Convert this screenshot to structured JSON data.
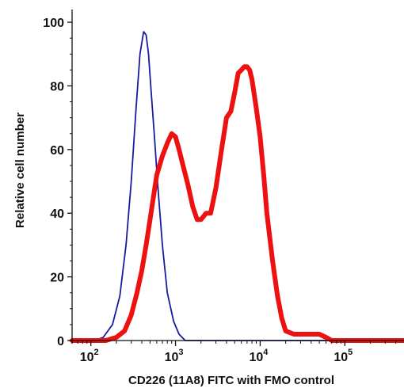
{
  "chart_data": {
    "type": "line",
    "title": "",
    "xlabel": "CD226 (11A8) FITC with FMO control",
    "ylabel": "Relative cell number",
    "xscale": "log",
    "xlim": [
      60,
      500000
    ],
    "ylim": [
      0,
      104
    ],
    "grid": false,
    "legend": "none",
    "y_ticks": [
      0,
      20,
      40,
      60,
      80,
      100
    ],
    "x_ticks": [
      {
        "value": 100,
        "base": "10",
        "exp": "2"
      },
      {
        "value": 1000,
        "base": "10",
        "exp": "3"
      },
      {
        "value": 10000,
        "base": "10",
        "exp": "4"
      },
      {
        "value": 100000,
        "base": "10",
        "exp": "5"
      }
    ],
    "series": [
      {
        "color": "#1a1aa0",
        "stroke": "thin",
        "x": [
          60,
          110,
          140,
          180,
          220,
          260,
          300,
          340,
          380,
          420,
          450,
          480,
          510,
          560,
          620,
          700,
          800,
          950,
          1100,
          1300,
          1600,
          100000
        ],
        "y": [
          0,
          0,
          1,
          5,
          14,
          30,
          50,
          72,
          90,
          97,
          96,
          90,
          80,
          65,
          48,
          30,
          15,
          6,
          2,
          0,
          0,
          0
        ]
      },
      {
        "color": "#ee1111",
        "stroke": "thick",
        "x": [
          60,
          150,
          200,
          250,
          300,
          350,
          400,
          450,
          500,
          600,
          700,
          800,
          900,
          1000,
          1100,
          1200,
          1400,
          1600,
          1800,
          2000,
          2300,
          2600,
          3000,
          3500,
          4000,
          4500,
          5000,
          5500,
          6000,
          6500,
          7000,
          7500,
          8000,
          9000,
          10000,
          11000,
          12000,
          14000,
          16000,
          18000,
          20000,
          25000,
          30000,
          40000,
          50000,
          60000,
          70000,
          500000
        ],
        "y": [
          0,
          0,
          1,
          3,
          8,
          15,
          22,
          30,
          38,
          52,
          58,
          62,
          65,
          64,
          60,
          56,
          49,
          42,
          38,
          38,
          40,
          40,
          48,
          60,
          70,
          72,
          78,
          84,
          85,
          86,
          86,
          85,
          82,
          73,
          64,
          52,
          40,
          25,
          14,
          7,
          3,
          2,
          2,
          2,
          2,
          1,
          0,
          0
        ]
      }
    ]
  }
}
